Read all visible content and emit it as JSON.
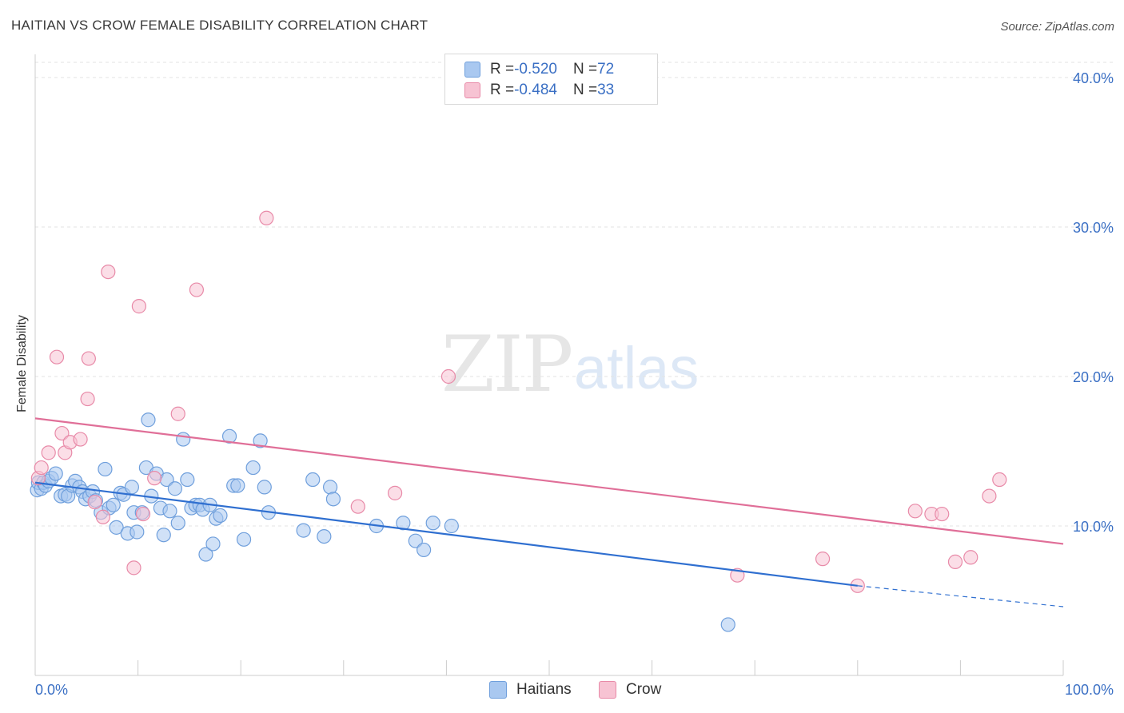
{
  "title": "HAITIAN VS CROW FEMALE DISABILITY CORRELATION CHART",
  "source": "Source: ZipAtlas.com",
  "watermark": {
    "zip": "ZIP",
    "atlas": "atlas"
  },
  "legend_top": [
    {
      "r_label": "R = ",
      "r": "-0.520",
      "n_label": "N = ",
      "n": "72",
      "color": "#a9c8f0",
      "border": "#6f9fdc"
    },
    {
      "r_label": "R = ",
      "r": "-0.484",
      "n_label": "N = ",
      "n": "33",
      "color": "#f7c3d3",
      "border": "#e88aa8"
    }
  ],
  "legend_bottom": [
    {
      "label": "Haitians",
      "color": "#a9c8f0",
      "border": "#6f9fdc"
    },
    {
      "label": "Crow",
      "color": "#f7c3d3",
      "border": "#e88aa8"
    }
  ],
  "chart_data": {
    "type": "scatter",
    "title": "HAITIAN VS CROW FEMALE DISABILITY CORRELATION CHART",
    "xlabel": "",
    "ylabel": "Female Disability",
    "xlim": [
      0,
      100
    ],
    "ylim": [
      0,
      40
    ],
    "x_tick_labels": [
      "0.0%",
      "100.0%"
    ],
    "y_tick_labels": [
      "10.0%",
      "20.0%",
      "30.0%",
      "40.0%"
    ],
    "y_ticks": [
      10,
      20,
      30,
      40
    ],
    "grid": true,
    "legend_placement": "top-center",
    "series": [
      {
        "name": "Haitians",
        "color": "#6f9fdc",
        "fill": "#a9c8f0",
        "trend": {
          "x0": 0,
          "y0": 12.9,
          "x1": 80,
          "y1": 6.0,
          "dash_to_x": 100,
          "dash_y": 4.6
        },
        "points": [
          [
            0.2,
            12.4
          ],
          [
            0.3,
            12.9
          ],
          [
            0.6,
            12.5
          ],
          [
            0.8,
            12.9
          ],
          [
            1.0,
            12.7
          ],
          [
            1.3,
            13.0
          ],
          [
            1.6,
            13.2
          ],
          [
            2.0,
            13.5
          ],
          [
            2.5,
            12.0
          ],
          [
            2.9,
            12.1
          ],
          [
            3.2,
            12.0
          ],
          [
            3.6,
            12.7
          ],
          [
            3.9,
            13.0
          ],
          [
            4.3,
            12.6
          ],
          [
            4.6,
            12.3
          ],
          [
            4.9,
            11.8
          ],
          [
            5.3,
            12.0
          ],
          [
            5.6,
            12.3
          ],
          [
            5.9,
            11.7
          ],
          [
            6.4,
            10.9
          ],
          [
            6.8,
            13.8
          ],
          [
            7.2,
            11.2
          ],
          [
            7.6,
            11.4
          ],
          [
            7.9,
            9.9
          ],
          [
            8.3,
            12.2
          ],
          [
            8.6,
            12.1
          ],
          [
            9.0,
            9.5
          ],
          [
            9.4,
            12.6
          ],
          [
            9.6,
            10.9
          ],
          [
            9.9,
            9.6
          ],
          [
            10.4,
            10.9
          ],
          [
            10.8,
            13.9
          ],
          [
            11.0,
            17.1
          ],
          [
            11.3,
            12.0
          ],
          [
            11.8,
            13.5
          ],
          [
            12.2,
            11.2
          ],
          [
            12.5,
            9.4
          ],
          [
            12.8,
            13.1
          ],
          [
            13.1,
            11.0
          ],
          [
            13.6,
            12.5
          ],
          [
            13.9,
            10.2
          ],
          [
            14.4,
            15.8
          ],
          [
            14.8,
            13.1
          ],
          [
            15.2,
            11.2
          ],
          [
            15.6,
            11.4
          ],
          [
            16.0,
            11.4
          ],
          [
            16.3,
            11.1
          ],
          [
            16.6,
            8.1
          ],
          [
            17.0,
            11.4
          ],
          [
            17.3,
            8.8
          ],
          [
            17.6,
            10.5
          ],
          [
            18.0,
            10.7
          ],
          [
            18.9,
            16.0
          ],
          [
            19.3,
            12.7
          ],
          [
            19.7,
            12.7
          ],
          [
            20.3,
            9.1
          ],
          [
            21.2,
            13.9
          ],
          [
            21.9,
            15.7
          ],
          [
            22.3,
            12.6
          ],
          [
            22.7,
            10.9
          ],
          [
            26.1,
            9.7
          ],
          [
            27.0,
            13.1
          ],
          [
            28.1,
            9.3
          ],
          [
            28.7,
            12.6
          ],
          [
            29.0,
            11.8
          ],
          [
            33.2,
            10.0
          ],
          [
            35.8,
            10.2
          ],
          [
            37.0,
            9.0
          ],
          [
            37.8,
            8.4
          ],
          [
            38.7,
            10.2
          ],
          [
            40.5,
            10.0
          ],
          [
            67.4,
            3.4
          ]
        ]
      },
      {
        "name": "Crow",
        "color": "#e88aa8",
        "fill": "#f7c3d3",
        "trend": {
          "x0": 0,
          "y0": 17.2,
          "x1": 100,
          "y1": 8.8
        },
        "points": [
          [
            0.3,
            13.2
          ],
          [
            0.6,
            13.9
          ],
          [
            1.3,
            14.9
          ],
          [
            2.1,
            21.3
          ],
          [
            2.6,
            16.2
          ],
          [
            2.9,
            14.9
          ],
          [
            3.4,
            15.6
          ],
          [
            4.4,
            15.8
          ],
          [
            5.2,
            21.2
          ],
          [
            5.1,
            18.5
          ],
          [
            5.8,
            11.6
          ],
          [
            6.6,
            10.6
          ],
          [
            7.1,
            27.0
          ],
          [
            9.6,
            7.2
          ],
          [
            10.1,
            24.7
          ],
          [
            10.5,
            10.8
          ],
          [
            11.6,
            13.2
          ],
          [
            13.9,
            17.5
          ],
          [
            15.7,
            25.8
          ],
          [
            22.5,
            30.6
          ],
          [
            31.4,
            11.3
          ],
          [
            35.0,
            12.2
          ],
          [
            40.2,
            20.0
          ],
          [
            68.3,
            6.7
          ],
          [
            76.6,
            7.8
          ],
          [
            80.0,
            6.0
          ],
          [
            87.2,
            10.8
          ],
          [
            88.2,
            10.8
          ],
          [
            85.6,
            11.0
          ],
          [
            89.5,
            7.6
          ],
          [
            91.0,
            7.9
          ],
          [
            92.8,
            12.0
          ],
          [
            93.8,
            13.1
          ]
        ]
      }
    ]
  }
}
